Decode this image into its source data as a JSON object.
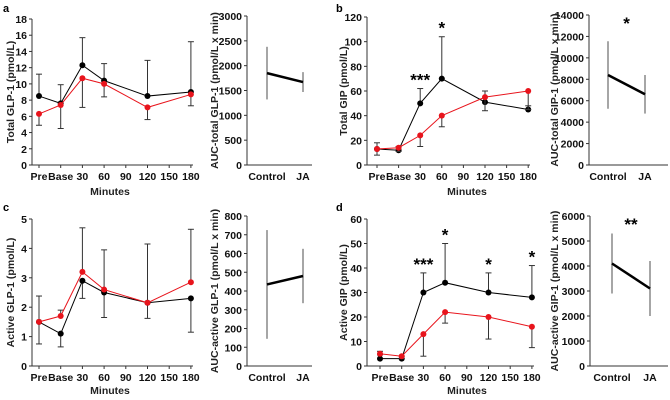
{
  "colors": {
    "control": "#000000",
    "ja": "#e8141c",
    "auc_line": "#000000",
    "auc_error": "#888888"
  },
  "chart_data": [
    {
      "panel": "a",
      "type": "line",
      "xlabel": "Minutes",
      "ylabel": "Total GLP-1  (pmol/L)",
      "categories": [
        "Pre",
        "Base",
        "30",
        "60",
        "90",
        "120",
        "150",
        "180"
      ],
      "ylim": [
        0,
        18
      ],
      "yticks": [
        0,
        2,
        4,
        6,
        8,
        10,
        12,
        14,
        16,
        18
      ],
      "series": [
        {
          "key": "control",
          "values": [
            8.5,
            7.6,
            12.3,
            10.4,
            null,
            8.5,
            null,
            9.0
          ],
          "err": [
            2.7,
            2.3,
            3.4,
            2.1,
            null,
            4.4,
            null,
            6.2
          ],
          "err_direction": "up"
        },
        {
          "key": "ja",
          "values": [
            6.3,
            7.4,
            10.7,
            10.0,
            null,
            7.1,
            null,
            8.7
          ],
          "err": [
            1.4,
            2.9,
            3.6,
            1.6,
            null,
            1.5,
            null,
            1.4
          ],
          "err_direction": "down"
        }
      ],
      "significance": [],
      "auc": {
        "type": "line",
        "ylabel": "AUC-total  GLP-1 (pmol/L x min)",
        "categories": [
          "Control",
          "JA"
        ],
        "ylim": [
          0,
          3000
        ],
        "yticks": [
          0,
          500,
          1000,
          1500,
          2000,
          2500,
          3000
        ],
        "values": [
          1850,
          1670
        ],
        "err": [
          530,
          200
        ],
        "significance": ""
      }
    },
    {
      "panel": "b",
      "type": "line",
      "xlabel": "Minutes",
      "ylabel": "Total GIP  (pmol/L)",
      "categories": [
        "Pre",
        "Base",
        "30",
        "60",
        "90",
        "120",
        "150",
        "180"
      ],
      "ylim": [
        0,
        120
      ],
      "yticks": [
        0,
        20,
        40,
        60,
        80,
        100,
        120
      ],
      "series": [
        {
          "key": "control",
          "values": [
            13,
            12,
            50,
            70,
            null,
            51,
            null,
            45
          ],
          "err": [
            5,
            3,
            12,
            34,
            null,
            9,
            null,
            3
          ],
          "err_direction": "up"
        },
        {
          "key": "ja",
          "values": [
            13,
            14,
            24,
            40,
            null,
            55,
            null,
            60
          ],
          "err": [
            5,
            3,
            9,
            9,
            null,
            11,
            null,
            15
          ],
          "err_direction": "down"
        }
      ],
      "significance": [
        {
          "category": "30",
          "label": "***"
        },
        {
          "category": "60",
          "label": "*"
        }
      ],
      "auc": {
        "type": "line",
        "ylabel": "AUC-total  GIP-1 (pmol/L x min)",
        "categories": [
          "Control",
          "JA"
        ],
        "ylim": [
          0,
          14000
        ],
        "yticks": [
          0,
          2000,
          4000,
          6000,
          8000,
          10000,
          12000,
          14000
        ],
        "values": [
          8400,
          6600
        ],
        "err": [
          3150,
          1800
        ],
        "significance": "*"
      }
    },
    {
      "panel": "c",
      "type": "line",
      "xlabel": "Minutes",
      "ylabel": "Active GLP-1  (pmol/L)",
      "categories": [
        "Pre",
        "Base",
        "30",
        "60",
        "90",
        "120",
        "150",
        "180"
      ],
      "ylim": [
        0,
        5
      ],
      "yticks": [
        0,
        1,
        2,
        3,
        4,
        5
      ],
      "series": [
        {
          "key": "control",
          "values": [
            1.5,
            1.1,
            2.9,
            2.5,
            null,
            2.15,
            null,
            2.3
          ],
          "err": [
            0.75,
            0.45,
            0.6,
            0.85,
            null,
            0.53,
            null,
            1.15
          ],
          "err_direction": "down"
        },
        {
          "key": "ja",
          "values": [
            1.5,
            1.7,
            3.2,
            2.6,
            null,
            2.15,
            null,
            2.85
          ],
          "err": [
            0.88,
            0.2,
            1.5,
            1.35,
            null,
            2.0,
            null,
            1.8
          ],
          "err_direction": "up"
        }
      ],
      "significance": [],
      "auc": {
        "type": "line",
        "ylabel": "AUC-active GLP-1 (pmol/L x min)",
        "categories": [
          "Control",
          "JA"
        ],
        "ylim": [
          0,
          800
        ],
        "yticks": [
          0,
          100,
          200,
          300,
          400,
          500,
          600,
          700,
          800
        ],
        "values": [
          435,
          480
        ],
        "err": [
          290,
          145
        ],
        "significance": ""
      }
    },
    {
      "panel": "d",
      "type": "line",
      "xlabel": "Minutes",
      "ylabel": "Active GIP (pmol/L)",
      "categories": [
        "Pre",
        "Base",
        "30",
        "60",
        "90",
        "120",
        "150",
        "180"
      ],
      "ylim": [
        0,
        60
      ],
      "yticks": [
        0,
        10,
        20,
        30,
        40,
        50,
        60
      ],
      "series": [
        {
          "key": "control",
          "values": [
            3,
            3,
            30,
            34,
            null,
            30,
            null,
            28
          ],
          "err": [
            3,
            1,
            8,
            16,
            null,
            8,
            null,
            13
          ],
          "err_direction": "up"
        },
        {
          "key": "ja",
          "values": [
            5,
            4,
            13,
            22,
            null,
            20,
            null,
            16
          ],
          "err": [
            0.5,
            1,
            9,
            4.5,
            null,
            9,
            null,
            8.5
          ],
          "err_direction": "down"
        }
      ],
      "significance": [
        {
          "category": "30",
          "label": "***"
        },
        {
          "category": "60",
          "label": "*"
        },
        {
          "category": "120",
          "label": "*"
        },
        {
          "category": "180",
          "label": "*"
        }
      ],
      "auc": {
        "type": "line",
        "ylabel": "AUC-active GIP-1 (pmol/L x min)",
        "categories": [
          "Control",
          "JA"
        ],
        "ylim": [
          0,
          6000
        ],
        "yticks": [
          0,
          1000,
          2000,
          3000,
          4000,
          5000,
          6000
        ],
        "values": [
          4100,
          3100
        ],
        "err": [
          1200,
          1100
        ],
        "significance": "**"
      }
    }
  ]
}
